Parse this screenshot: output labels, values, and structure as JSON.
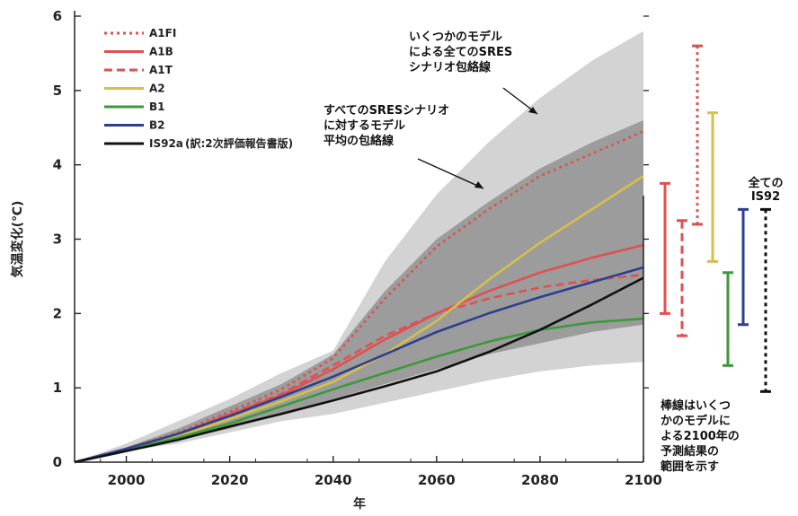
{
  "chart_data": {
    "type": "line",
    "xlabel": "年",
    "ylabel": "気温変化(℃)",
    "xlim": [
      1990,
      2100
    ],
    "ylim": [
      0,
      6
    ],
    "xticks": [
      2000,
      2020,
      2040,
      2060,
      2080,
      2100
    ],
    "yticks": [
      0,
      1,
      2,
      3,
      4,
      5,
      6
    ],
    "bands": [
      {
        "label": [
          "いくつかのモデル",
          "による全てのSRES",
          "シナリオ包絡線"
        ],
        "color": "#d3d3d3",
        "x": [
          1990,
          2000,
          2010,
          2020,
          2030,
          2040,
          2050,
          2060,
          2070,
          2080,
          2090,
          2100
        ],
        "upper": [
          0.0,
          0.25,
          0.55,
          0.85,
          1.2,
          1.5,
          2.7,
          3.6,
          4.3,
          4.9,
          5.4,
          5.8
        ],
        "lower": [
          0.0,
          0.15,
          0.25,
          0.4,
          0.55,
          0.65,
          0.8,
          0.95,
          1.1,
          1.22,
          1.3,
          1.35
        ]
      },
      {
        "label": [
          "すべてのSRESシナリオ",
          "に対するモデル",
          "平均の包絡線"
        ],
        "color": "#9c9c9c",
        "x": [
          1990,
          2000,
          2010,
          2020,
          2030,
          2040,
          2050,
          2060,
          2070,
          2080,
          2090,
          2100
        ],
        "upper": [
          0.0,
          0.2,
          0.45,
          0.75,
          1.05,
          1.45,
          2.3,
          3.0,
          3.5,
          3.95,
          4.3,
          4.6
        ],
        "lower": [
          0.0,
          0.15,
          0.3,
          0.45,
          0.65,
          0.85,
          1.05,
          1.25,
          1.45,
          1.6,
          1.75,
          1.85
        ]
      }
    ],
    "x": [
      1990,
      2000,
      2010,
      2020,
      2030,
      2040,
      2050,
      2060,
      2070,
      2080,
      2090,
      2100
    ],
    "series": [
      {
        "name": "A1FI",
        "color": "#d9534f",
        "dash": "dot",
        "values": [
          0.0,
          0.18,
          0.4,
          0.68,
          0.98,
          1.4,
          2.2,
          2.9,
          3.4,
          3.85,
          4.15,
          4.45
        ]
      },
      {
        "name": "A1B",
        "color": "#e05050",
        "dash": "solid",
        "values": [
          0.0,
          0.18,
          0.38,
          0.64,
          0.9,
          1.25,
          1.65,
          2.0,
          2.3,
          2.55,
          2.75,
          2.92
        ]
      },
      {
        "name": "A1T",
        "color": "#e05050",
        "dash": "dash",
        "values": [
          0.0,
          0.18,
          0.38,
          0.65,
          0.92,
          1.3,
          1.7,
          2.0,
          2.2,
          2.35,
          2.45,
          2.52
        ]
      },
      {
        "name": "A2",
        "color": "#d4c04a",
        "dash": "solid",
        "values": [
          0.0,
          0.16,
          0.35,
          0.58,
          0.82,
          1.08,
          1.45,
          1.9,
          2.45,
          2.95,
          3.4,
          3.85
        ]
      },
      {
        "name": "B1",
        "color": "#3a9a3a",
        "dash": "solid",
        "values": [
          0.0,
          0.16,
          0.33,
          0.52,
          0.75,
          0.98,
          1.2,
          1.42,
          1.62,
          1.78,
          1.88,
          1.93
        ]
      },
      {
        "name": "B2",
        "color": "#2f3f8f",
        "dash": "solid",
        "values": [
          0.0,
          0.18,
          0.38,
          0.62,
          0.88,
          1.15,
          1.45,
          1.75,
          2.0,
          2.22,
          2.42,
          2.62
        ]
      },
      {
        "name": "IS92a",
        "color": "#111111",
        "dash": "solid",
        "values": [
          0.0,
          0.15,
          0.3,
          0.48,
          0.65,
          0.83,
          1.02,
          1.22,
          1.48,
          1.78,
          2.12,
          2.48
        ]
      }
    ],
    "legend_extra": "(訳:2次評価報告書版)",
    "legend_position": "top-left",
    "range_bars": [
      {
        "name": "A1FI",
        "color": "#d9534f",
        "dash": "dot",
        "low": 3.2,
        "high": 5.6
      },
      {
        "name": "A1B",
        "color": "#e05050",
        "dash": "solid",
        "low": 2.0,
        "high": 3.75
      },
      {
        "name": "A1T",
        "color": "#e05050",
        "dash": "dash",
        "low": 1.7,
        "high": 3.25
      },
      {
        "name": "A2",
        "color": "#d4c04a",
        "dash": "solid",
        "low": 2.7,
        "high": 4.7
      },
      {
        "name": "B1",
        "color": "#3a9a3a",
        "dash": "solid",
        "low": 1.3,
        "high": 2.55
      },
      {
        "name": "B2",
        "color": "#2f3f8f",
        "dash": "solid",
        "low": 1.85,
        "high": 3.4
      },
      {
        "name": "IS92",
        "color": "#111111",
        "dash": "dash",
        "low": 0.95,
        "high": 3.4,
        "label": [
          "全ての",
          "IS92"
        ]
      }
    ],
    "range_note": [
      "棒線はいくつ",
      "かのモデルに",
      "よる2100年の",
      "予測結果の",
      "範囲を示す"
    ]
  }
}
